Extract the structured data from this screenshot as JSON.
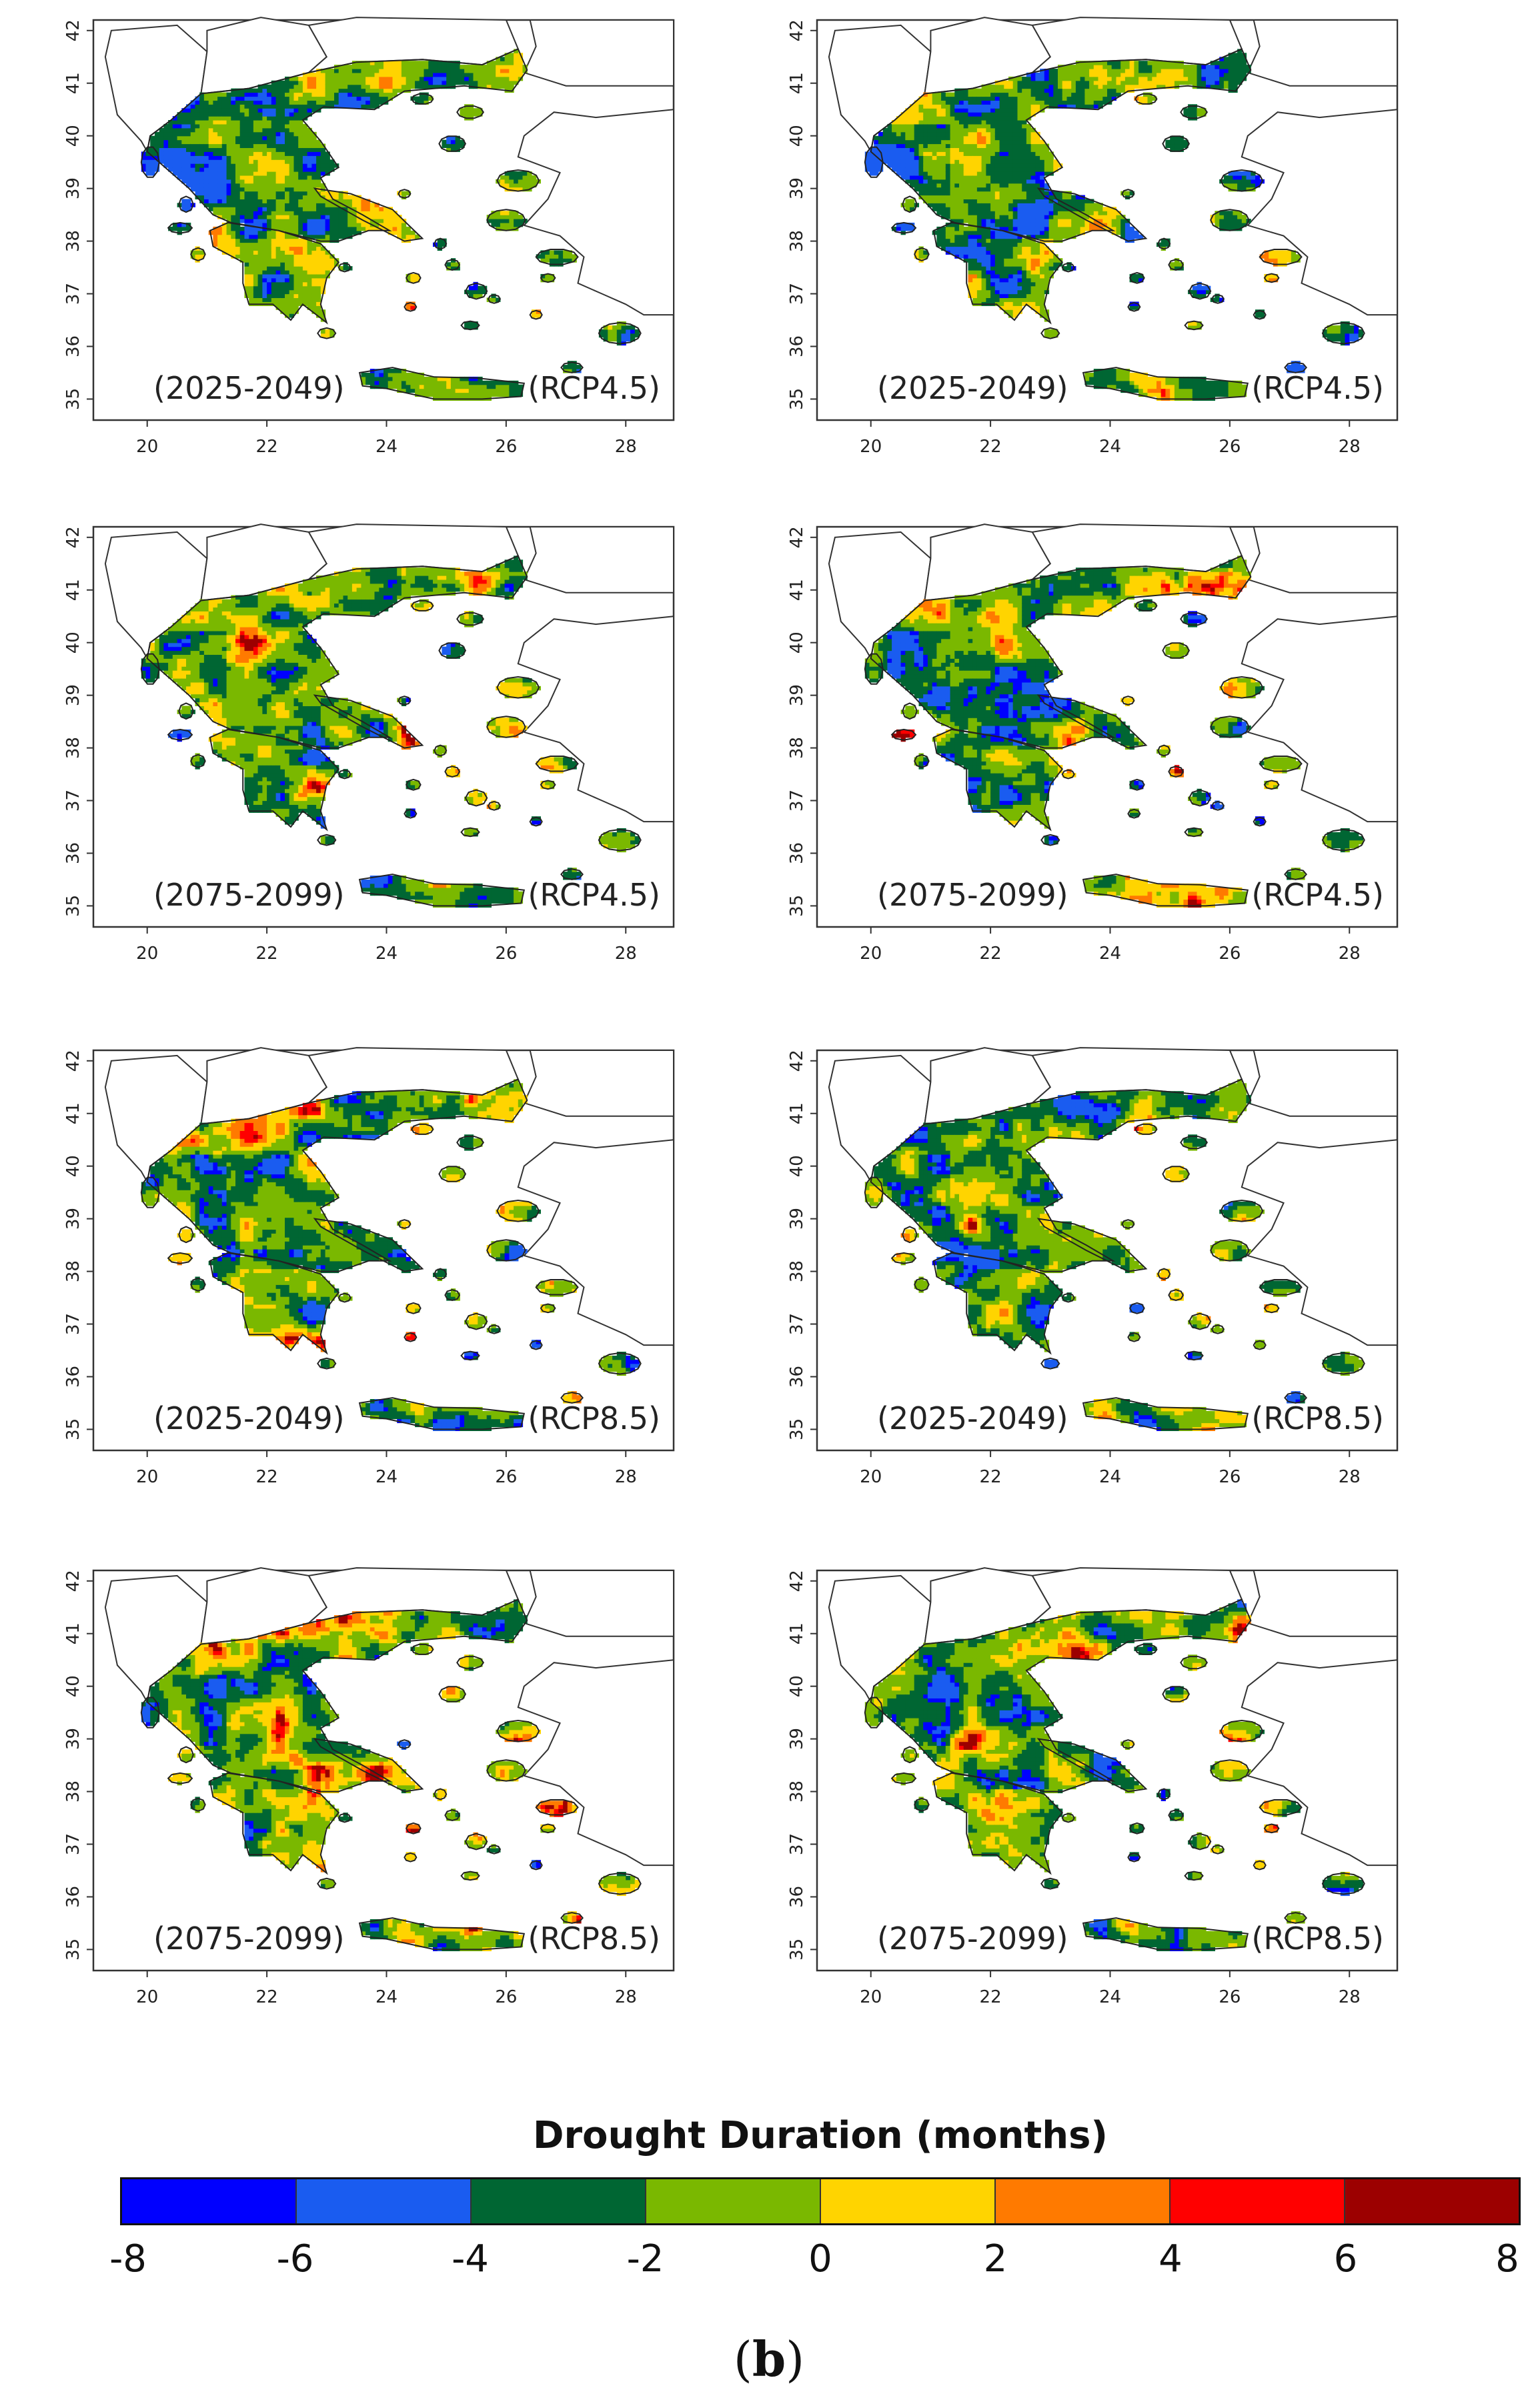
{
  "panels": [
    {
      "period": "(2025-2049)",
      "scenario": "(RCP4.5)"
    },
    {
      "period": "(2025-2049)",
      "scenario": "(RCP4.5)"
    },
    {
      "period": "(2075-2099)",
      "scenario": "(RCP4.5)"
    },
    {
      "period": "(2075-2099)",
      "scenario": "(RCP4.5)"
    },
    {
      "period": "(2025-2049)",
      "scenario": "(RCP8.5)"
    },
    {
      "period": "(2025-2049)",
      "scenario": "(RCP8.5)"
    },
    {
      "period": "(2075-2099)",
      "scenario": "(RCP8.5)"
    },
    {
      "period": "(2075-2099)",
      "scenario": "(RCP8.5)"
    }
  ],
  "axes": {
    "x_ticks": [
      "20",
      "22",
      "24",
      "26",
      "28"
    ],
    "y_ticks": [
      "35",
      "36",
      "37",
      "38",
      "39",
      "40",
      "41",
      "42"
    ]
  },
  "legend": {
    "title": "Drought Duration (months)",
    "ticks": [
      "-8",
      "-6",
      "-4",
      "-2",
      "0",
      "2",
      "4",
      "6",
      "8"
    ],
    "colors": [
      "#0000ff",
      "#1a5cf0",
      "#006633",
      "#7ab800",
      "#ffd400",
      "#ff7a00",
      "#ff0000",
      "#9c0000"
    ]
  },
  "figure_label": {
    "open": "(",
    "letter": "b",
    "close": ")"
  }
}
